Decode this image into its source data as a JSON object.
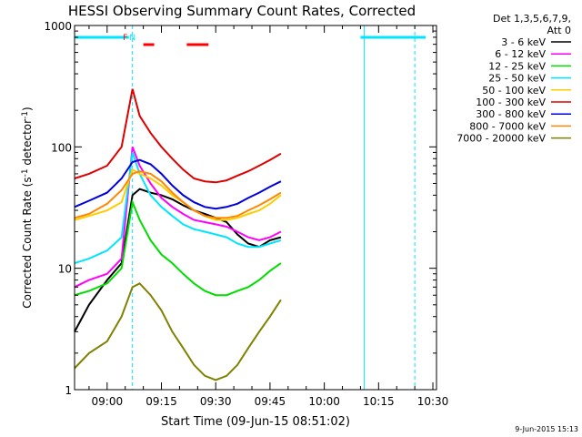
{
  "chart_data": {
    "type": "line",
    "title": "HESSI Observing Summary Count Rates, Corrected",
    "xlabel": "Start Time (09-Jun-15 08:51:02)",
    "ylabel_main": "Corrected Count Rate (s",
    "ylabel_sup": "-1",
    "ylabel_mid": " detector",
    "ylabel_sup2": "-1",
    "ylabel_end": ")",
    "y_scale": "log",
    "ylim": [
      1,
      1000
    ],
    "xlim": [
      "08:51",
      "10:31"
    ],
    "x_ticks": [
      "09:00",
      "09:15",
      "09:30",
      "09:45",
      "10:00",
      "10:15",
      "10:30"
    ],
    "y_ticks": [
      "1",
      "10",
      "100",
      "1000"
    ],
    "legend_header": [
      "Det 1,3,5,6,7,9,",
      "Att 0"
    ],
    "legend_position": "right",
    "footer_date": "9-Jun-2015 15:13",
    "flags": {
      "cyan_bars": [
        [
          "08:51",
          "09:06"
        ],
        [
          "10:10",
          "10:28"
        ]
      ],
      "red_bars": [
        [
          "09:10",
          "09:13"
        ],
        [
          "09:22",
          "09:28"
        ]
      ],
      "markers": [
        {
          "label": "F",
          "time": "09:05",
          "color": "#ff0000"
        },
        {
          "label": "N",
          "time": "09:07",
          "color": "#00e5ff"
        }
      ],
      "dashed_lines": [
        "09:07",
        "10:25"
      ],
      "solid_lines": [
        "10:11"
      ]
    },
    "series": [
      {
        "name": "3 - 6 keV",
        "color": "#000000",
        "x": [
          "08:51",
          "08:55",
          "09:00",
          "09:04",
          "09:07",
          "09:09",
          "09:12",
          "09:15",
          "09:18",
          "09:21",
          "09:24",
          "09:27",
          "09:30",
          "09:33",
          "09:36",
          "09:39",
          "09:42",
          "09:45",
          "09:48"
        ],
        "y": [
          3,
          5,
          8,
          11,
          40,
          45,
          42,
          40,
          37,
          33,
          30,
          28,
          26,
          24,
          19,
          16,
          15,
          17,
          18
        ]
      },
      {
        "name": "6 - 12 keV",
        "color": "#ff00ff",
        "x": [
          "08:51",
          "08:55",
          "09:00",
          "09:04",
          "09:07",
          "09:09",
          "09:12",
          "09:15",
          "09:18",
          "09:21",
          "09:24",
          "09:27",
          "09:30",
          "09:33",
          "09:36",
          "09:39",
          "09:42",
          "09:45",
          "09:48"
        ],
        "y": [
          7,
          8,
          9,
          12,
          100,
          70,
          50,
          38,
          32,
          28,
          25,
          24,
          23,
          22,
          20,
          18,
          17,
          18,
          20
        ]
      },
      {
        "name": "12 - 25 keV",
        "color": "#00dd00",
        "x": [
          "08:51",
          "08:55",
          "09:00",
          "09:04",
          "09:07",
          "09:09",
          "09:12",
          "09:15",
          "09:18",
          "09:21",
          "09:24",
          "09:27",
          "09:30",
          "09:33",
          "09:36",
          "09:39",
          "09:42",
          "09:45",
          "09:48"
        ],
        "y": [
          6,
          6.5,
          7.5,
          10,
          35,
          25,
          17,
          13,
          11,
          9,
          7.5,
          6.5,
          6,
          6,
          6.5,
          7,
          8,
          9.5,
          11
        ]
      },
      {
        "name": "25 - 50 keV",
        "color": "#00e5ff",
        "x": [
          "08:51",
          "08:55",
          "09:00",
          "09:04",
          "09:07",
          "09:09",
          "09:12",
          "09:15",
          "09:18",
          "09:21",
          "09:24",
          "09:27",
          "09:30",
          "09:33",
          "09:36",
          "09:39",
          "09:42",
          "09:45",
          "09:48"
        ],
        "y": [
          11,
          12,
          14,
          18,
          90,
          60,
          40,
          32,
          27,
          23,
          21,
          20,
          19,
          18,
          16,
          15,
          15,
          16,
          17
        ]
      },
      {
        "name": "50 - 100 keV",
        "color": "#ffcc00",
        "x": [
          "08:51",
          "08:55",
          "09:00",
          "09:04",
          "09:07",
          "09:09",
          "09:12",
          "09:15",
          "09:18",
          "09:21",
          "09:24",
          "09:27",
          "09:30",
          "09:33",
          "09:36",
          "09:39",
          "09:42",
          "09:45",
          "09:48"
        ],
        "y": [
          25,
          27,
          30,
          35,
          65,
          60,
          55,
          48,
          40,
          35,
          30,
          27,
          25,
          25,
          26,
          28,
          30,
          34,
          40
        ]
      },
      {
        "name": "100 - 300 keV",
        "color": "#dd0000",
        "x": [
          "08:51",
          "08:55",
          "09:00",
          "09:04",
          "09:07",
          "09:09",
          "09:12",
          "09:15",
          "09:18",
          "09:21",
          "09:24",
          "09:27",
          "09:30",
          "09:33",
          "09:36",
          "09:39",
          "09:42",
          "09:45",
          "09:48"
        ],
        "y": [
          55,
          60,
          70,
          100,
          300,
          180,
          130,
          100,
          80,
          65,
          55,
          52,
          51,
          53,
          58,
          63,
          70,
          78,
          88
        ]
      },
      {
        "name": "300 - 800 keV",
        "color": "#0000dd",
        "x": [
          "08:51",
          "08:55",
          "09:00",
          "09:04",
          "09:07",
          "09:09",
          "09:12",
          "09:15",
          "09:18",
          "09:21",
          "09:24",
          "09:27",
          "09:30",
          "09:33",
          "09:36",
          "09:39",
          "09:42",
          "09:45",
          "09:48"
        ],
        "y": [
          32,
          36,
          42,
          55,
          75,
          78,
          72,
          60,
          48,
          40,
          35,
          32,
          31,
          32,
          34,
          38,
          42,
          47,
          52
        ]
      },
      {
        "name": "800 - 7000 keV",
        "color": "#ff8800",
        "x": [
          "08:51",
          "08:55",
          "09:00",
          "09:04",
          "09:07",
          "09:09",
          "09:12",
          "09:15",
          "09:18",
          "09:21",
          "09:24",
          "09:27",
          "09:30",
          "09:33",
          "09:36",
          "09:39",
          "09:42",
          "09:45",
          "09:48"
        ],
        "y": [
          26,
          28,
          34,
          44,
          60,
          63,
          60,
          52,
          42,
          35,
          30,
          27,
          26,
          26,
          27,
          30,
          33,
          37,
          42
        ]
      },
      {
        "name": "7000 - 20000 keV",
        "color": "#808000",
        "x": [
          "08:51",
          "08:55",
          "09:00",
          "09:04",
          "09:07",
          "09:09",
          "09:12",
          "09:15",
          "09:18",
          "09:21",
          "09:24",
          "09:27",
          "09:30",
          "09:33",
          "09:36",
          "09:39",
          "09:42",
          "09:45",
          "09:48"
        ],
        "y": [
          1.5,
          2,
          2.5,
          4,
          7,
          7.5,
          6,
          4.5,
          3,
          2.2,
          1.6,
          1.3,
          1.2,
          1.3,
          1.6,
          2.2,
          3,
          4,
          5.5
        ]
      }
    ]
  }
}
